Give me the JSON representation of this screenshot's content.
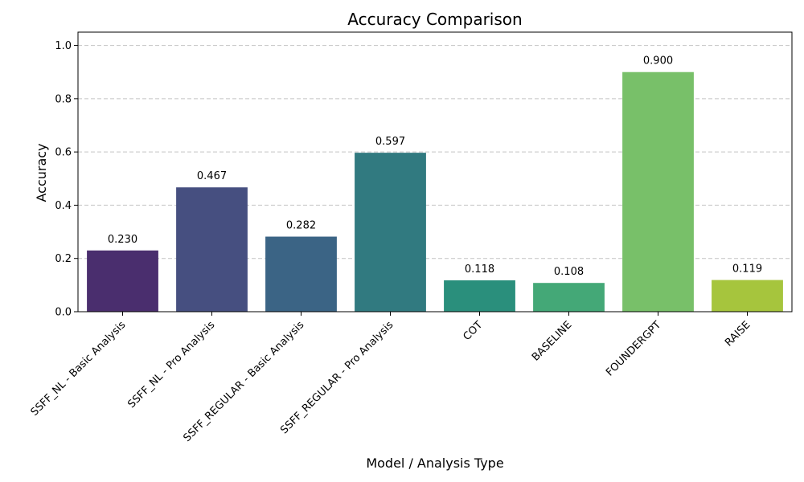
{
  "chart_data": {
    "type": "bar",
    "title": "Accuracy Comparison",
    "xlabel": "Model / Analysis Type",
    "ylabel": "Accuracy",
    "categories": [
      "SSFF_NL - Basic Analysis",
      "SSFF_NL - Pro Analysis",
      "SSFF_REGULAR - Basic Analysis",
      "SSFF_REGULAR - Pro Analysis",
      "COT",
      "BASELINE",
      "FOUNDERGPT",
      "RAISE"
    ],
    "values": [
      0.23,
      0.467,
      0.282,
      0.597,
      0.118,
      0.108,
      0.9,
      0.119
    ],
    "value_labels": [
      "0.230",
      "0.467",
      "0.282",
      "0.597",
      "0.118",
      "0.108",
      "0.900",
      "0.119"
    ],
    "colors": [
      "#4a2e6e",
      "#464f80",
      "#3b6485",
      "#317a80",
      "#2a8f7c",
      "#44a877",
      "#78c069",
      "#a6c53d"
    ],
    "ylim": [
      0,
      1.05
    ],
    "yticks": [
      0.0,
      0.2,
      0.4,
      0.6,
      0.8,
      1.0
    ],
    "ytick_labels": [
      "0.0",
      "0.2",
      "0.4",
      "0.6",
      "0.8",
      "1.0"
    ],
    "grid": "y-dashed",
    "legend": "none"
  }
}
